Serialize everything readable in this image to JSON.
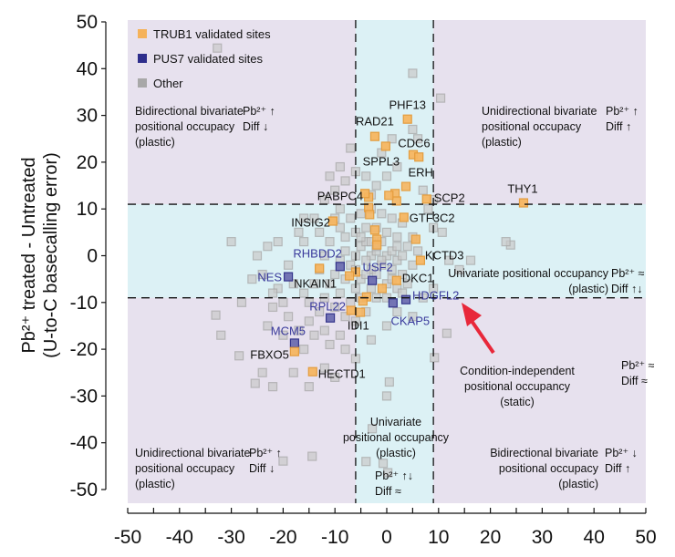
{
  "chart_data": {
    "type": "scatter",
    "title": "",
    "xlabel": "",
    "ylabel": [
      "Pb²⁺ treated - Untreated",
      "(U-to-C basecalling error)"
    ],
    "xlim": [
      -50,
      50
    ],
    "ylim": [
      -50,
      50
    ],
    "x_ticks": [
      "-50",
      "-40",
      "-30",
      "-20",
      "-10",
      "0",
      "10",
      "20",
      "30",
      "40",
      "50"
    ],
    "y_ticks": [
      "50",
      "40",
      "30",
      "20",
      "10",
      "0",
      "-10",
      "-20",
      "-30",
      "-40",
      "-50"
    ],
    "thresholds": {
      "x": [
        -6,
        9
      ],
      "y": [
        -9,
        11
      ]
    },
    "legend": {
      "placement": "top-left",
      "entries": [
        {
          "label": "TRUB1 validated sites",
          "color": "#f5b25a"
        },
        {
          "label": "PUS7 validated sites",
          "color": "#2e2e8c"
        },
        {
          "label": "Other",
          "color": "#a8a8a8"
        }
      ]
    },
    "colors": {
      "outer_region": "#e7e1ee",
      "inner_band": "#dcf1f5",
      "trub1_fill": "#f5b560",
      "trub1_stroke": "#e39a3a",
      "pus7_fill": "#6d6db0",
      "pus7_stroke": "#2e2e88",
      "other_fill": "#c9c9c9",
      "other_stroke": "#a5a5a5",
      "blue_label": "#3a3a9c",
      "arrow": "#e8283a"
    },
    "labeled_points": [
      {
        "gene": "PHF13",
        "x": 4.0,
        "y": 29.2,
        "group": "TRUB1"
      },
      {
        "gene": "RAD21",
        "x": -2.3,
        "y": 25.5,
        "group": "TRUB1"
      },
      {
        "gene": "CDC6",
        "x": 5.1,
        "y": 21.6,
        "group": "TRUB1"
      },
      {
        "gene": "SPPL3",
        "x": -0.2,
        "y": 23.4,
        "group": "TRUB1"
      },
      {
        "gene": "ERH",
        "x": 6.2,
        "y": 21.1,
        "group": "TRUB1"
      },
      {
        "gene": "PABPC4",
        "x": -4.2,
        "y": 13.3,
        "group": "TRUB1"
      },
      {
        "gene": "SCP2",
        "x": 7.7,
        "y": 12.1,
        "group": "TRUB1"
      },
      {
        "gene": "THY1",
        "x": 26.4,
        "y": 11.3,
        "group": "TRUB1"
      },
      {
        "gene": "GTF3C2",
        "x": 3.3,
        "y": 8.2,
        "group": "TRUB1"
      },
      {
        "gene": "INSIG2",
        "x": -10.4,
        "y": 7.4,
        "group": "TRUB1"
      },
      {
        "gene": "KCTD3",
        "x": 6.5,
        "y": -1.0,
        "group": "TRUB1"
      },
      {
        "gene": "RHBDD2",
        "x": -9.0,
        "y": -2.3,
        "group": "PUS7"
      },
      {
        "gene": "NES",
        "x": -19.0,
        "y": -4.5,
        "group": "PUS7"
      },
      {
        "gene": "NKAIN1",
        "x": -13.0,
        "y": -2.7,
        "group": "TRUB1"
      },
      {
        "gene": "USF2",
        "x": -2.8,
        "y": -5.3,
        "group": "PUS7"
      },
      {
        "gene": "DKC1",
        "x": 1.9,
        "y": -5.3,
        "group": "TRUB1"
      },
      {
        "gene": "HDGFL2",
        "x": 3.7,
        "y": -9.4,
        "group": "PUS7"
      },
      {
        "gene": "CKAP5",
        "x": 1.2,
        "y": -10.1,
        "group": "PUS7"
      },
      {
        "gene": "RPL22",
        "x": -10.9,
        "y": -13.3,
        "group": "PUS7"
      },
      {
        "gene": "IDI1",
        "x": -6.9,
        "y": -11.7,
        "group": "TRUB1"
      },
      {
        "gene": "MCM5",
        "x": -17.8,
        "y": -18.7,
        "group": "PUS7"
      },
      {
        "gene": "FBXO5",
        "x": -17.8,
        "y": -20.5,
        "group": "TRUB1"
      },
      {
        "gene": "HECTD1",
        "x": -14.3,
        "y": -24.8,
        "group": "TRUB1"
      }
    ],
    "trub1_unlabeled": [
      [
        -3.5,
        10.3
      ],
      [
        -3.3,
        8.8
      ],
      [
        1.6,
        13.3
      ],
      [
        1.9,
        11.7
      ],
      [
        3.7,
        14.8
      ],
      [
        -2.3,
        5.5
      ],
      [
        -1.9,
        3.5
      ],
      [
        -1.9,
        2.3
      ],
      [
        5.6,
        3.5
      ],
      [
        -6,
        -3.5
      ],
      [
        -7.2,
        -4.3
      ],
      [
        -0.9,
        -7
      ],
      [
        -3.9,
        -8.8
      ],
      [
        -4.6,
        -9.7
      ],
      [
        -5.1,
        -12.1
      ],
      [
        0.4,
        12.9
      ],
      [
        -3.5,
        12.5
      ]
    ],
    "other_points": [
      [
        -3,
        0
      ],
      [
        -2,
        1
      ],
      [
        -4,
        -1
      ],
      [
        -1,
        -2
      ],
      [
        0,
        0
      ],
      [
        -5,
        2
      ],
      [
        -6,
        0
      ],
      [
        -3,
        -3
      ],
      [
        -2,
        -4
      ],
      [
        -4,
        3
      ],
      [
        -1,
        3
      ],
      [
        1,
        1
      ],
      [
        2,
        -1
      ],
      [
        -7,
        -2
      ],
      [
        -8,
        1
      ],
      [
        -5,
        -5
      ],
      [
        -6,
        -7
      ],
      [
        -3,
        -7
      ],
      [
        0,
        -6
      ],
      [
        1,
        -3
      ],
      [
        3,
        0
      ],
      [
        4,
        2
      ],
      [
        2,
        4
      ],
      [
        0,
        5
      ],
      [
        -2,
        6
      ],
      [
        -4,
        6
      ],
      [
        -6,
        5
      ],
      [
        -8,
        4
      ],
      [
        -9,
        -1
      ],
      [
        -10,
        -4
      ],
      [
        -11,
        -6
      ],
      [
        -9,
        -8
      ],
      [
        -7,
        -10
      ],
      [
        -5,
        -9
      ],
      [
        -2,
        -9
      ],
      [
        0,
        -9
      ],
      [
        2,
        -7
      ],
      [
        3,
        -4
      ],
      [
        5,
        -2
      ],
      [
        4,
        -6
      ],
      [
        6,
        1
      ],
      [
        5,
        4
      ],
      [
        3,
        7
      ],
      [
        1,
        8
      ],
      [
        -1,
        9
      ],
      [
        -3,
        10
      ],
      [
        -5,
        9
      ],
      [
        -7,
        8
      ],
      [
        -9,
        6
      ],
      [
        -11,
        3
      ],
      [
        -12,
        0
      ],
      [
        -13,
        -3
      ],
      [
        -14,
        -6
      ],
      [
        -12,
        -9
      ],
      [
        -10,
        -11
      ],
      [
        -8,
        -13
      ],
      [
        -6,
        -14
      ],
      [
        -4,
        -12
      ],
      [
        -13,
        -12
      ],
      [
        -15,
        -10
      ],
      [
        -16,
        -8
      ],
      [
        -15,
        -14
      ],
      [
        -17,
        -16
      ],
      [
        -14,
        -17
      ],
      [
        -12,
        -16
      ],
      [
        -11,
        -19
      ],
      [
        -9,
        -17
      ],
      [
        -16,
        -20
      ],
      [
        -19,
        -13
      ],
      [
        -20,
        -10
      ],
      [
        -21,
        -7
      ],
      [
        -18,
        -6
      ],
      [
        -22,
        -11
      ],
      [
        -23,
        -15
      ],
      [
        -20,
        -17
      ],
      [
        -24,
        -4
      ],
      [
        -26,
        -5
      ],
      [
        -25,
        0
      ],
      [
        -23,
        2
      ],
      [
        -21,
        3
      ],
      [
        -17,
        5
      ],
      [
        -16,
        3
      ],
      [
        -14,
        8
      ],
      [
        -12,
        12
      ],
      [
        -10,
        14
      ],
      [
        -8,
        16
      ],
      [
        -6,
        18
      ],
      [
        -9,
        19
      ],
      [
        -11,
        17
      ],
      [
        -7,
        23
      ],
      [
        -4,
        17
      ],
      [
        -2,
        15
      ],
      [
        0,
        17
      ],
      [
        2,
        19
      ],
      [
        -1,
        22
      ],
      [
        1,
        25
      ],
      [
        5,
        27
      ],
      [
        6,
        25
      ],
      [
        10.4,
        33.7
      ],
      [
        5,
        39
      ],
      [
        -16,
        8
      ],
      [
        -19,
        -2
      ],
      [
        -22,
        -8
      ],
      [
        -28,
        -10
      ],
      [
        -30,
        3
      ],
      [
        -33,
        -12.7
      ],
      [
        -32,
        -17
      ],
      [
        -28.5,
        -21.4
      ],
      [
        -25.4,
        -27.3
      ],
      [
        -24,
        -25
      ],
      [
        -22,
        -28
      ],
      [
        -20,
        -43.9
      ],
      [
        -14.4,
        -42.9
      ],
      [
        -2.8,
        -37
      ],
      [
        0.5,
        -27
      ],
      [
        0,
        -30
      ],
      [
        -0.7,
        -44.4
      ],
      [
        0.2,
        -46.4
      ],
      [
        -4,
        -44
      ],
      [
        -12,
        -24
      ],
      [
        -10,
        -26
      ],
      [
        -15,
        -28
      ],
      [
        -18,
        -25
      ],
      [
        -8,
        -20
      ],
      [
        -6,
        -22
      ],
      [
        -3,
        -18
      ],
      [
        0,
        -15
      ],
      [
        2,
        -12
      ],
      [
        5,
        -13
      ],
      [
        7,
        -9
      ],
      [
        9,
        -7
      ],
      [
        11.6,
        -16.6
      ],
      [
        9.2,
        -21.8
      ],
      [
        10.7,
        5
      ],
      [
        9,
        6
      ],
      [
        12,
        -1
      ],
      [
        16.2,
        -1
      ],
      [
        23.9,
        2.3
      ],
      [
        23,
        3
      ],
      [
        14,
        -3
      ],
      [
        8,
        10
      ],
      [
        7,
        14
      ],
      [
        9,
        12
      ],
      [
        -32.7,
        44.4
      ],
      [
        -3,
        3
      ],
      [
        -1,
        -1
      ],
      [
        1,
        -5
      ],
      [
        -4,
        -4
      ],
      [
        -2,
        2
      ],
      [
        2,
        2
      ],
      [
        -6,
        -3
      ],
      [
        -8,
        -5
      ],
      [
        -5,
        4
      ],
      [
        3,
        -8
      ],
      [
        -10,
        8
      ],
      [
        -13,
        5
      ],
      [
        -9,
        10
      ],
      [
        -3,
        13
      ]
    ],
    "annotations": [
      {
        "id": "top-left",
        "lines": [
          "Bidirectional bivariate",
          "positional occupacy",
          "(plastic)"
        ],
        "sign": [
          "Pb²⁺ ↑",
          "Diff ↓"
        ]
      },
      {
        "id": "top-right",
        "lines": [
          "Unidirectional bivariate",
          "positional occupacy",
          "(plastic)"
        ],
        "sign": [
          "Pb²⁺ ↑",
          "Diff ↑"
        ]
      },
      {
        "id": "middle-right",
        "lines": [
          "Univariate positional occupancy",
          "(plastic)"
        ],
        "sign": [
          "Pb²⁺ ≈",
          "Diff ↑↓"
        ]
      },
      {
        "id": "center-static",
        "lines": [
          "Condition-independent",
          "positional occupancy",
          "(static)"
        ],
        "sign": [
          "Pb²⁺ ≈",
          "Diff ≈"
        ]
      },
      {
        "id": "bottom-center",
        "lines": [
          "Univariate",
          "positional occupancy",
          "(plastic)"
        ],
        "sign": [
          "Pb²⁺ ↑↓",
          "Diff ≈"
        ]
      },
      {
        "id": "bottom-left",
        "lines": [
          "Unidirectional bivariate",
          "positional occupacy",
          "(plastic)"
        ],
        "sign": [
          "Pb²⁺ ↑",
          "Diff ↓"
        ]
      },
      {
        "id": "bottom-right",
        "lines": [
          "Bidirectional bivariate",
          "positional occupacy",
          "(plastic)"
        ],
        "sign": [
          "Pb²⁺ ↓",
          "Diff ↑"
        ]
      }
    ],
    "arrow": {
      "points_to": "HDGFL2"
    }
  }
}
